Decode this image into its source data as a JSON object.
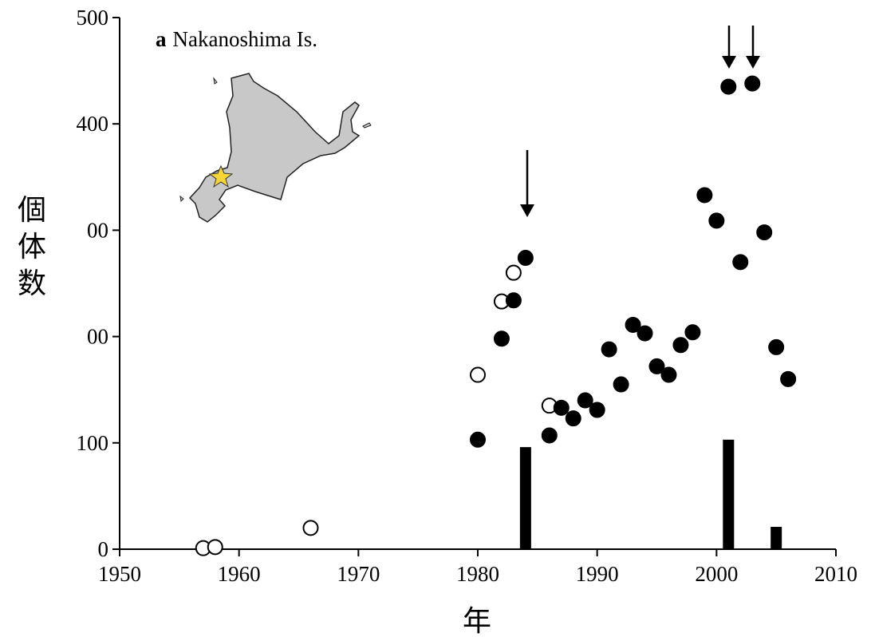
{
  "chart_data": {
    "type": "scatter",
    "panel_label": "a",
    "title": "Nakanoshima Is.",
    "xlabel": "年",
    "ylabel": "個体数",
    "xlim": [
      1950,
      2010
    ],
    "xticks": [
      1950,
      1960,
      1970,
      1980,
      1990,
      2000,
      2010
    ],
    "ylim": [
      0,
      500
    ],
    "yticks": [
      0,
      100,
      {
        "value": 200,
        "label": "00"
      },
      {
        "value": 300,
        "label": "00"
      },
      400,
      500
    ],
    "series": [
      {
        "type": "scatter",
        "marker": "open",
        "color": "#000000",
        "x": [
          1957,
          1958,
          1966,
          1980,
          1982,
          1983,
          1986
        ],
        "values": [
          1,
          2,
          20,
          164,
          233,
          260,
          135
        ]
      },
      {
        "type": "scatter",
        "marker": "filled",
        "color": "#000000",
        "x": [
          1980,
          1982,
          1983,
          1984,
          1986,
          1987,
          1988,
          1989,
          1990,
          1991,
          1992,
          1993,
          1994,
          1995,
          1996,
          1997,
          1998,
          1999,
          2000,
          2001,
          2002,
          2003,
          2004,
          2005,
          2006
        ],
        "values": [
          103,
          198,
          234,
          274,
          107,
          133,
          123,
          140,
          131,
          188,
          155,
          211,
          203,
          172,
          164,
          192,
          204,
          333,
          309,
          435,
          270,
          438,
          298,
          190,
          160
        ]
      },
      {
        "type": "bar",
        "color": "#000000",
        "x": [
          1984,
          2001,
          2005
        ],
        "values": [
          96,
          103,
          21
        ]
      }
    ]
  }
}
